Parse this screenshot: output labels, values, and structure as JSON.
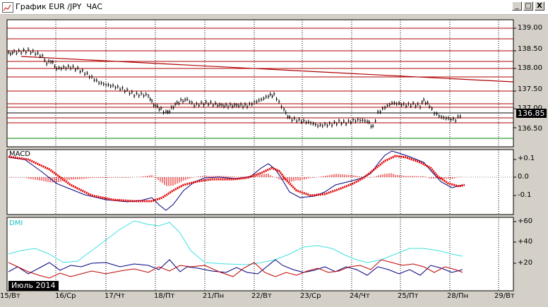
{
  "window": {
    "title": "График EUR /JPY  ЧАС",
    "minimize": "_",
    "maximize": "□",
    "close": "X"
  },
  "price_panel": {
    "current_price": "136.85",
    "y_labels": [
      "139.00",
      "138.50",
      "138.00",
      "137.50",
      "137.00",
      "136.50"
    ]
  },
  "macd_panel": {
    "title": "MACD",
    "y_labels": [
      "+0.1",
      "0.0",
      "-0.1"
    ]
  },
  "dmi_panel": {
    "title": "DMI",
    "y_labels": [
      "+60",
      "+40",
      "+20"
    ]
  },
  "date_box": "Июль 2014",
  "x_labels": [
    "15/Вт",
    "16/Ср",
    "17/Чт",
    "18/Пт",
    "21/Пн",
    "22/Вт",
    "23/Ср",
    "24/Чт",
    "25/Пт",
    "28/Пн",
    "29/Вт"
  ],
  "colors": {
    "bg": "#ffffff",
    "grid": "#000000",
    "hline": "#b00000",
    "greenline": "#008000",
    "macd_signal": "#e00000",
    "macd_line": "#000080",
    "dmi_adx": "#40e0e0",
    "dmi_plus": "#000080",
    "dmi_minus": "#c00000"
  }
}
